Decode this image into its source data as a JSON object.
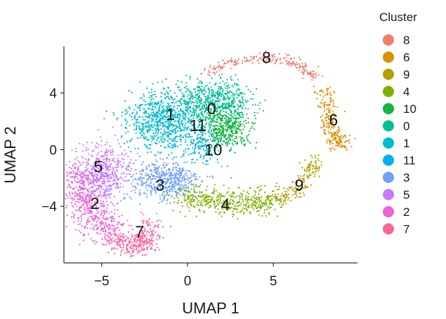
{
  "chart_data": {
    "type": "scatter",
    "title": "",
    "xlabel": "UMAP 1",
    "ylabel": "UMAP 2",
    "xlim": [
      -7.2,
      9.9
    ],
    "ylim": [
      -8.0,
      7.3
    ],
    "xticks": [
      -5,
      0,
      5
    ],
    "yticks": [
      4,
      0,
      -4
    ],
    "x_tick_labels": [
      "−5",
      "0",
      "5"
    ],
    "y_tick_labels": [
      "4",
      "0",
      "−4"
    ],
    "grid": false,
    "legend": {
      "title": "Cluster",
      "placement": "right",
      "entries": [
        {
          "label": "8",
          "color": "#F07D6E"
        },
        {
          "label": "6",
          "color": "#D89000"
        },
        {
          "label": "9",
          "color": "#B3A000"
        },
        {
          "label": "4",
          "color": "#7FB100"
        },
        {
          "label": "10",
          "color": "#13B53F"
        },
        {
          "label": "0",
          "color": "#00BF95"
        },
        {
          "label": "1",
          "color": "#00BCCF"
        },
        {
          "label": "11",
          "color": "#00B0F0"
        },
        {
          "label": "3",
          "color": "#6FA2F7"
        },
        {
          "label": "5",
          "color": "#C77CFF"
        },
        {
          "label": "2",
          "color": "#EC63D6"
        },
        {
          "label": "7",
          "color": "#F8679E"
        }
      ]
    },
    "clusters": [
      {
        "name": "8",
        "color": "#F07D6E",
        "label_pos": [
          4.6,
          6.5
        ],
        "path": [
          [
            1.2,
            5.3
          ],
          [
            2.5,
            6.2
          ],
          [
            4.0,
            6.5
          ],
          [
            5.5,
            6.4
          ],
          [
            6.7,
            5.9
          ],
          [
            7.5,
            5.0
          ]
        ],
        "spread": 0.2,
        "n": 220
      },
      {
        "name": "6",
        "color": "#D89000",
        "label_pos": [
          8.5,
          2.1
        ],
        "path": [
          [
            7.8,
            4.3
          ],
          [
            8.2,
            3.0
          ],
          [
            8.3,
            1.5
          ],
          [
            8.6,
            0.6
          ],
          [
            9.0,
            0.5
          ]
        ],
        "spread": 0.3,
        "n": 240
      },
      {
        "name": "9",
        "color": "#B3A000",
        "label_pos": [
          6.5,
          -2.5
        ],
        "path": [
          [
            5.0,
            -3.6
          ],
          [
            6.2,
            -3.0
          ],
          [
            7.0,
            -1.8
          ],
          [
            7.5,
            -0.8
          ]
        ],
        "spread": 0.3,
        "n": 180
      },
      {
        "name": "4",
        "color": "#7FB100",
        "label_pos": [
          2.2,
          -3.9
        ],
        "path": [
          [
            -0.3,
            -3.4
          ],
          [
            1.0,
            -3.5
          ],
          [
            2.5,
            -3.7
          ],
          [
            4.0,
            -3.8
          ],
          [
            5.0,
            -3.4
          ]
        ],
        "spread": 0.45,
        "n": 460
      },
      {
        "name": "10",
        "color": "#13B53F",
        "label_pos": [
          1.5,
          0.0
        ],
        "blob": [
          2.3,
          1.5,
          1.3,
          1.2
        ],
        "n": 380
      },
      {
        "name": "0",
        "color": "#00BF95",
        "label_pos": [
          1.4,
          2.9
        ],
        "blob": [
          1.6,
          3.4,
          2.0,
          1.3
        ],
        "n": 620
      },
      {
        "name": "1",
        "color": "#00BCCF",
        "label_pos": [
          -1.0,
          2.5
        ],
        "blob": [
          -1.4,
          2.1,
          1.9,
          1.9
        ],
        "n": 820
      },
      {
        "name": "11",
        "color": "#00B0F0",
        "label_pos": [
          0.6,
          1.7
        ],
        "blob": [
          0.9,
          0.3,
          1.2,
          1.2
        ],
        "n": 170
      },
      {
        "name": "3",
        "color": "#6FA2F7",
        "label_pos": [
          -1.6,
          -2.5
        ],
        "blob": [
          -1.3,
          -2.2,
          1.9,
          1.3
        ],
        "n": 520
      },
      {
        "name": "5",
        "color": "#C77CFF",
        "label_pos": [
          -5.2,
          -1.2
        ],
        "blob": [
          -4.9,
          -1.7,
          1.5,
          1.8
        ],
        "n": 520
      },
      {
        "name": "2",
        "color": "#EC63D6",
        "label_pos": [
          -5.4,
          -3.8
        ],
        "path": [
          [
            -6.1,
            -1.6
          ],
          [
            -6.0,
            -3.2
          ],
          [
            -5.4,
            -4.9
          ],
          [
            -4.4,
            -6.0
          ]
        ],
        "spread": 0.6,
        "n": 520
      },
      {
        "name": "7",
        "color": "#F8679E",
        "label_pos": [
          -2.8,
          -5.8
        ],
        "path": [
          [
            -4.5,
            -6.2
          ],
          [
            -3.2,
            -6.9
          ],
          [
            -2.4,
            -6.4
          ],
          [
            -2.0,
            -5.0
          ]
        ],
        "spread": 0.38,
        "n": 320
      }
    ]
  }
}
